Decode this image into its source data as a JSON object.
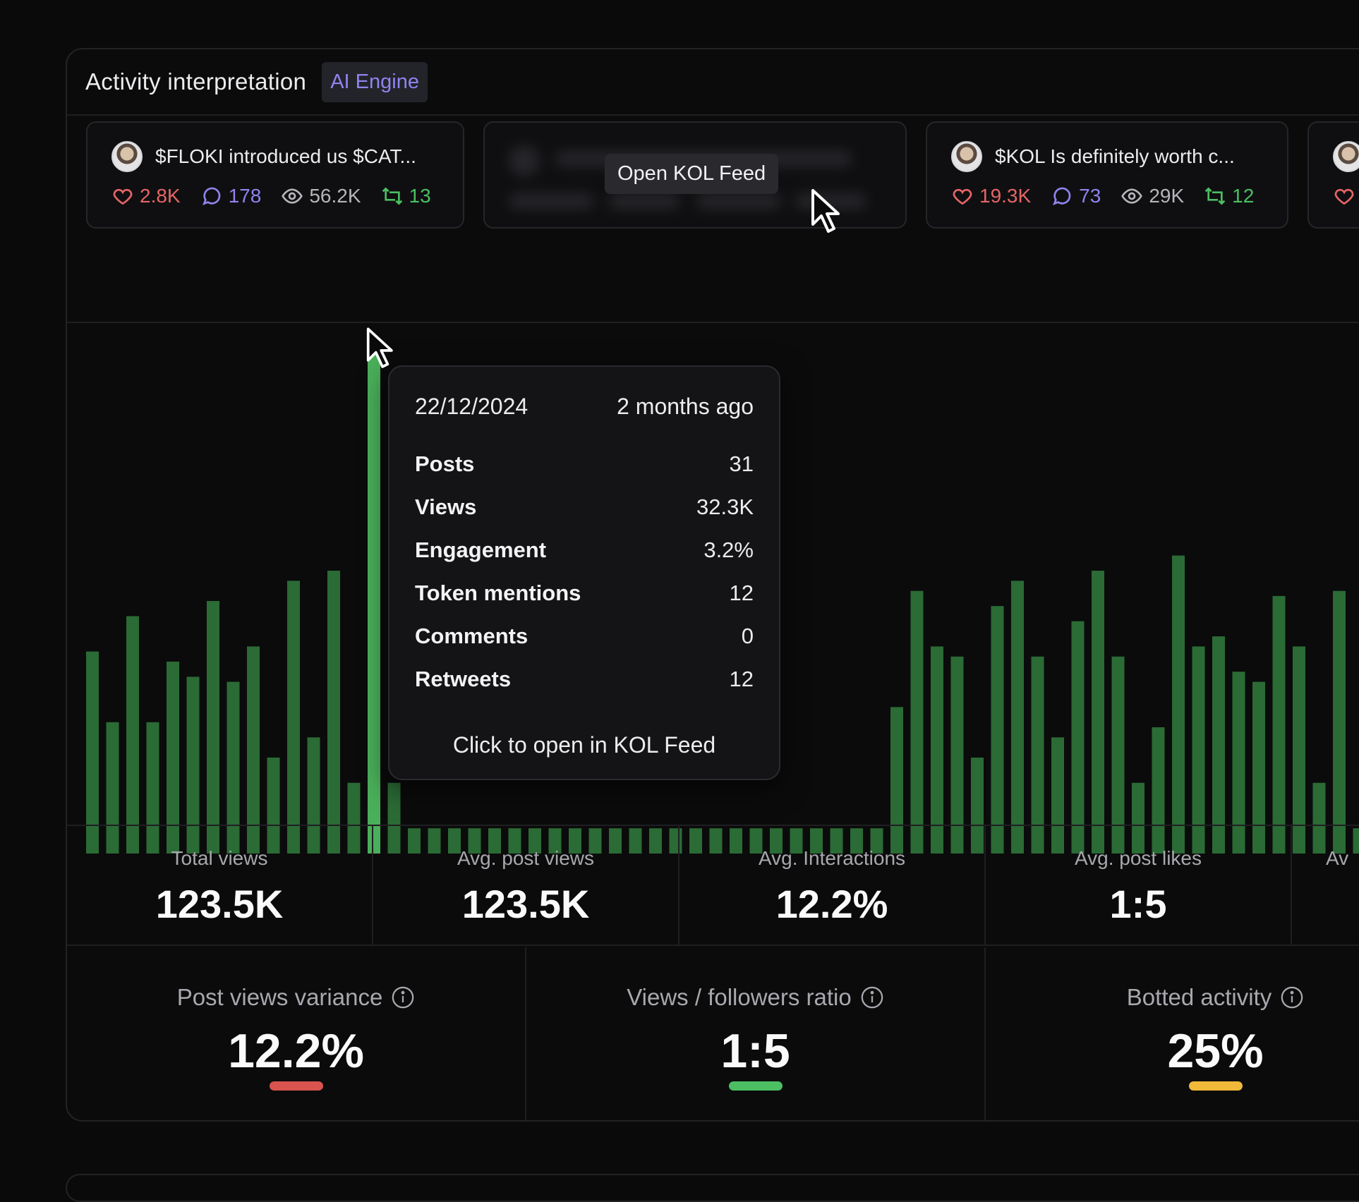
{
  "panel": {
    "title": "Activity interpretation",
    "badge": "AI Engine"
  },
  "posts": [
    {
      "text": "$FLOKI introduced us $CAT...",
      "likes": "2.8K",
      "comments": "178",
      "views": "56.2K",
      "retweets": "13"
    },
    {
      "overlay_label": "Open KOL Feed"
    },
    {
      "text": "$KOL Is definitely worth c...",
      "likes": "19.3K",
      "comments": "73",
      "views": "29K",
      "retweets": "12"
    }
  ],
  "tooltip": {
    "date": "22/12/2024",
    "relative": "2 months ago",
    "rows": [
      {
        "label": "Posts",
        "value": "31"
      },
      {
        "label": "Views",
        "value": "32.3K"
      },
      {
        "label": "Engagement",
        "value": "3.2%"
      },
      {
        "label": "Token mentions",
        "value": "12"
      },
      {
        "label": "Comments",
        "value": "0"
      },
      {
        "label": "Retweets",
        "value": "12"
      }
    ],
    "footer": "Click to open in KOL Feed"
  },
  "chart_data": {
    "type": "bar",
    "highlighted_index": 14,
    "values": [
      40,
      26,
      47,
      26,
      38,
      35,
      50,
      34,
      41,
      19,
      54,
      23,
      56,
      14,
      100,
      14,
      5,
      5,
      5,
      5,
      5,
      5,
      5,
      5,
      5,
      5,
      5,
      5,
      5,
      5,
      5,
      5,
      5,
      5,
      5,
      5,
      5,
      5,
      5,
      5,
      29,
      52,
      41,
      39,
      19,
      49,
      54,
      39,
      23,
      46,
      56,
      39,
      14,
      25,
      59,
      41,
      43,
      36,
      34,
      51,
      41,
      14,
      52,
      5,
      46,
      52,
      26,
      39,
      41,
      37,
      42,
      38
    ],
    "colors": {
      "bar": "#2b6b35",
      "highlight": "#4aaf5a"
    }
  },
  "metrics_row1": [
    {
      "label": "Total views",
      "value": "123.5K"
    },
    {
      "label": "Avg. post views",
      "value": "123.5K"
    },
    {
      "label": "Avg. Interactions",
      "value": "12.2%"
    },
    {
      "label": "Avg. post likes",
      "value": "1:5"
    },
    {
      "label": "Av",
      "value": ""
    }
  ],
  "metrics_row2": [
    {
      "label": "Post views variance",
      "value": "12.2%",
      "color": "#d9534f"
    },
    {
      "label": "Views / followers ratio",
      "value": "1:5",
      "color": "#4cbf62"
    },
    {
      "label": "Botted activity",
      "value": "25%",
      "color": "#f0b93a"
    }
  ]
}
